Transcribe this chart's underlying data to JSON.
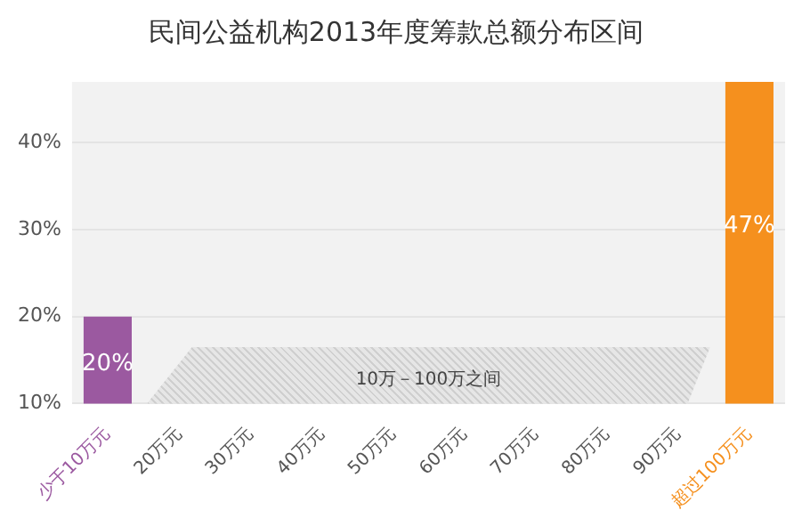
{
  "chart_data": {
    "type": "bar",
    "title": "民间公益机构2013年度筹款总额分布区间",
    "categories": [
      "少于10万元",
      "20万元",
      "30万元",
      "40万元",
      "50万元",
      "60万元",
      "70万元",
      "80万元",
      "90万元",
      "超过100万元"
    ],
    "values": [
      20,
      null,
      null,
      null,
      null,
      null,
      null,
      null,
      null,
      47
    ],
    "colors": [
      "#9b59a0",
      "#9b59a0",
      "#9b59a0",
      "#9b59a0",
      "#9b59a0",
      "#9b59a0",
      "#9b59a0",
      "#9b59a0",
      "#9b59a0",
      "#f5901e"
    ],
    "value_labels": [
      "20%",
      null,
      null,
      null,
      null,
      null,
      null,
      null,
      null,
      "47%"
    ],
    "ylim": [
      10,
      47
    ],
    "yticks": [
      {
        "value": 10,
        "label": "10%"
      },
      {
        "value": 20,
        "label": "20%"
      },
      {
        "value": 30,
        "label": "30%"
      },
      {
        "value": 40,
        "label": "40%"
      }
    ],
    "grid": "y",
    "legend": false,
    "annotations": [
      "10万－100万之间"
    ]
  }
}
